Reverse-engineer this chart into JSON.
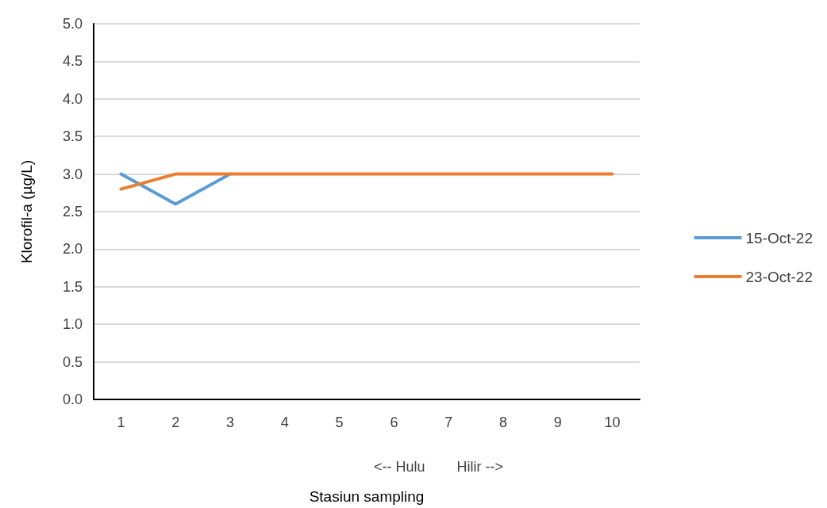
{
  "chart_data": {
    "type": "line",
    "xlabel": "Stasiun sampling",
    "ylabel": "Klorofil-a (µg/L)",
    "annotations": [
      "<-- Hulu        Hilir -->"
    ],
    "categories": [
      "1",
      "2",
      "3",
      "4",
      "5",
      "6",
      "7",
      "8",
      "9",
      "10"
    ],
    "series": [
      {
        "name": "15-Oct-22",
        "color": "#5b9bd5",
        "values": [
          3.0,
          2.6,
          3.0,
          null,
          null,
          null,
          null,
          null,
          null,
          null
        ]
      },
      {
        "name": "23-Oct-22",
        "color": "#ed7d31",
        "values": [
          2.8,
          3.0,
          3.0,
          3.0,
          3.0,
          3.0,
          3.0,
          3.0,
          3.0,
          3.0
        ]
      }
    ],
    "ylim": [
      0,
      5
    ],
    "yticks": [
      {
        "value": 0,
        "label": "0.0"
      },
      0.5,
      {
        "value": 1,
        "label": "1.0"
      },
      1.5,
      {
        "value": 2,
        "label": "2.0"
      },
      2.5,
      {
        "value": 3,
        "label": "3.0"
      },
      3.5,
      {
        "value": 4,
        "label": "4.0"
      },
      4.5,
      {
        "value": 5,
        "label": "5.0"
      }
    ],
    "grid": "y",
    "legend": "right",
    "marker": "none",
    "line_style": "solid"
  }
}
